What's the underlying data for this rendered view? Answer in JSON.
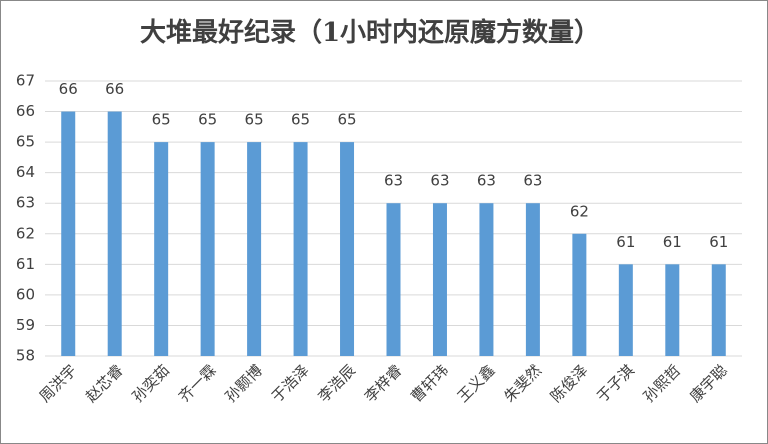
{
  "chart_data": {
    "type": "bar",
    "title": "大堆最好纪录（1小时内还原魔方数量）",
    "categories": [
      "周洪宇",
      "赵芯睿",
      "孙奕茹",
      "齐一霖",
      "孙颢博",
      "于浩泽",
      "李浩辰",
      "李梓睿",
      "曹轩玮",
      "王义鑫",
      "朱斐然",
      "陈俊泽",
      "于子淇",
      "孙熙哲",
      "康宇聪"
    ],
    "values": [
      66,
      66,
      65,
      65,
      65,
      65,
      65,
      63,
      63,
      63,
      63,
      62,
      61,
      61,
      61
    ],
    "color": "#5b9bd5",
    "ylim": [
      58,
      67
    ],
    "yticks": [
      58,
      59,
      60,
      61,
      62,
      63,
      64,
      65,
      66,
      67
    ],
    "grid": true
  }
}
